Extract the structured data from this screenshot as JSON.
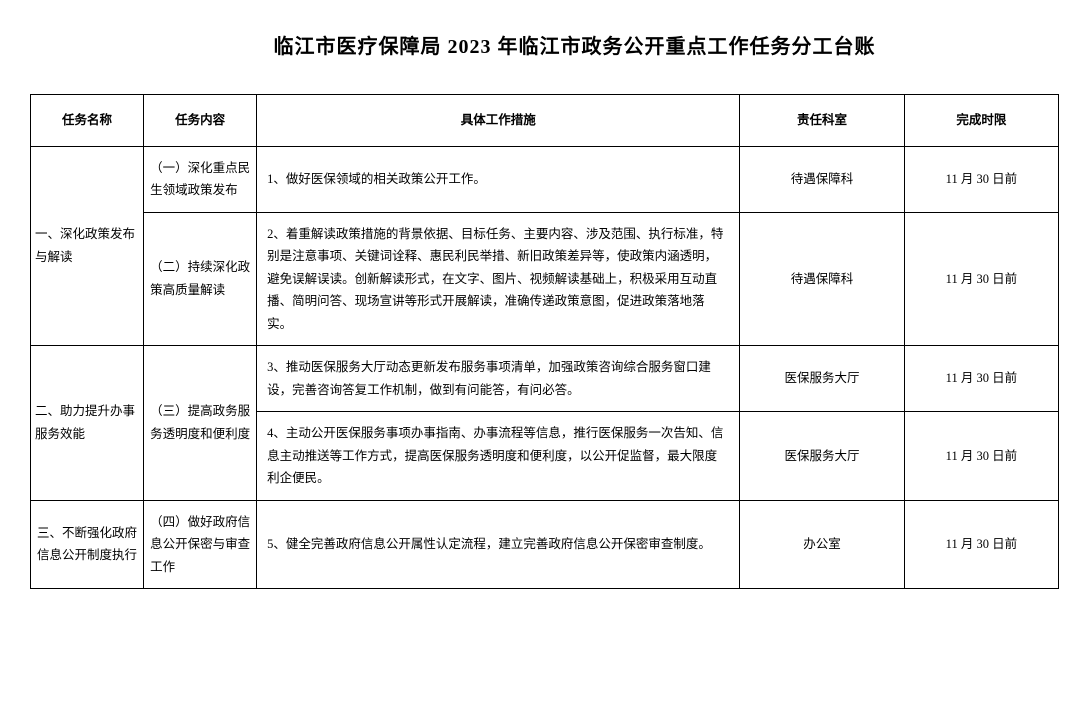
{
  "title": "临江市医疗保障局 2023 年临江市政务公开重点工作任务分工台账",
  "table": {
    "headers": {
      "task_name": "任务名称",
      "task_content": "任务内容",
      "measure": "具体工作措施",
      "dept": "责任科室",
      "deadline": "完成时限"
    },
    "rows": [
      {
        "task_name": "一、深化政策发布与解读",
        "task_content": "（一）深化重点民生领域政策发布",
        "measure": "1、做好医保领域的相关政策公开工作。",
        "dept": "待遇保障科",
        "deadline": "11 月 30 日前"
      },
      {
        "task_content": "（二）持续深化政策高质量解读",
        "measure": "2、着重解读政策措施的背景依据、目标任务、主要内容、涉及范围、执行标准，特别是注意事项、关键词诠释、惠民利民举措、新旧政策差异等，使政策内涵透明，避免误解误读。创新解读形式，在文字、图片、视频解读基础上，积极采用互动直播、简明问答、现场宣讲等形式开展解读，准确传递政策意图，促进政策落地落实。",
        "dept": "待遇保障科",
        "deadline": "11 月 30 日前"
      },
      {
        "task_name": "二、助力提升办事服务效能",
        "task_content": "（三）提高政务服务透明度和便利度",
        "measure": "3、推动医保服务大厅动态更新发布服务事项清单，加强政策咨询综合服务窗口建设，完善咨询答复工作机制，做到有问能答，有问必答。",
        "dept": "医保服务大厅",
        "deadline": "11 月 30 日前"
      },
      {
        "measure": "4、主动公开医保服务事项办事指南、办事流程等信息，推行医保服务一次告知、信息主动推送等工作方式，提高医保服务透明度和便利度，以公开促监督，最大限度利企便民。",
        "dept": "医保服务大厅",
        "deadline": "11 月 30 日前"
      },
      {
        "task_name": "三、不断强化政府信息公开制度执行",
        "task_content": "（四）做好政府信息公开保密与审查工作",
        "measure": "5、健全完善政府信息公开属性认定流程，建立完善政府信息公开保密审查制度。",
        "dept": "办公室",
        "deadline": "11 月 30 日前"
      }
    ]
  },
  "styling": {
    "background_color": "#ffffff",
    "text_color": "#000000",
    "border_color": "#000000",
    "title_fontsize": 20,
    "cell_fontsize": 12.5,
    "line_height": 1.8,
    "column_widths_pct": [
      11,
      11,
      47,
      16,
      15
    ]
  }
}
